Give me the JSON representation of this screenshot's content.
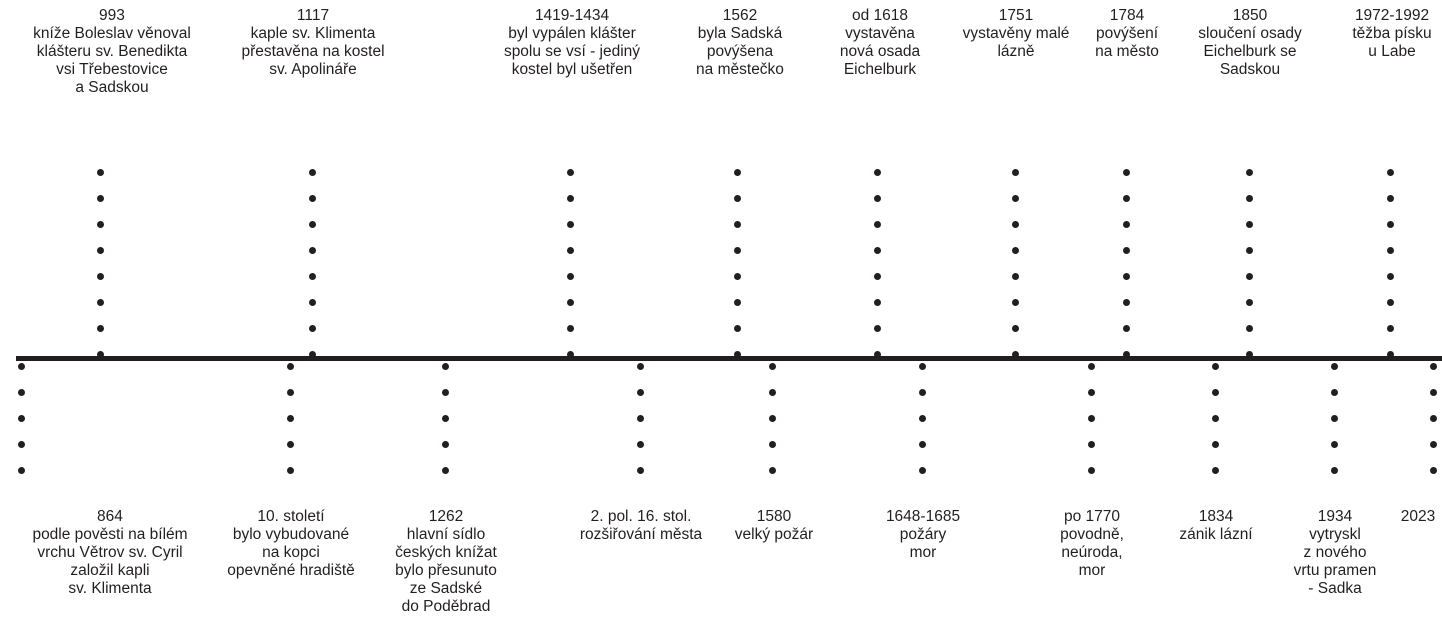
{
  "timeline": {
    "above": [
      {
        "year": "993",
        "text": "kníže Boleslav věnoval\nklášteru sv. Benedikta\nvsi Třebestovice\na Sadskou"
      },
      {
        "year": "1117",
        "text": "kaple sv. Klimenta\npřestavěna na kostel\nsv. Apolináře"
      },
      {
        "year": "1419-1434",
        "text": "byl vypálen klášter\nspolu se vsí - jediný\nkostel byl ušetřen"
      },
      {
        "year": "1562",
        "text": "byla Sadská\npovýšena\nna městečko"
      },
      {
        "year": "od 1618",
        "text": "vystavěna\nnová osada\nEichelburk"
      },
      {
        "year": "1751",
        "text": "vystavěny malé\nlázně"
      },
      {
        "year": "1784",
        "text": "povýšení\nna město"
      },
      {
        "year": "1850",
        "text": "sloučení osady\nEichelburk se\nSadskou"
      },
      {
        "year": "1972-1992",
        "text": "těžba písku\nu Labe"
      }
    ],
    "below": [
      {
        "year": "864",
        "text": "podle pověsti na bílém\nvrchu Větrov sv. Cyril\nzaložil kapli\nsv. Klimenta"
      },
      {
        "year": "10. století",
        "text": "bylo vybudované\nna kopci\nopevněné hradiště"
      },
      {
        "year": "1262",
        "text": "hlavní sídlo\nčeských knížat\nbylo přesunuto\nze Sadské\ndo Poděbrad"
      },
      {
        "year": "2. pol. 16. stol.",
        "text": "rozšiřování města"
      },
      {
        "year": "1580",
        "text": "velký požár"
      },
      {
        "year": "1648-1685",
        "text": "požáry\nmor"
      },
      {
        "year": "po 1770",
        "text": "povodně,\nneúroda,\nmor"
      },
      {
        "year": "1834",
        "text": "zánik lázní"
      },
      {
        "year": "1934",
        "text": "vytryskl\nz nového\nvrtu pramen\n- Sadka"
      },
      {
        "year": "2023",
        "text": ""
      }
    ]
  }
}
